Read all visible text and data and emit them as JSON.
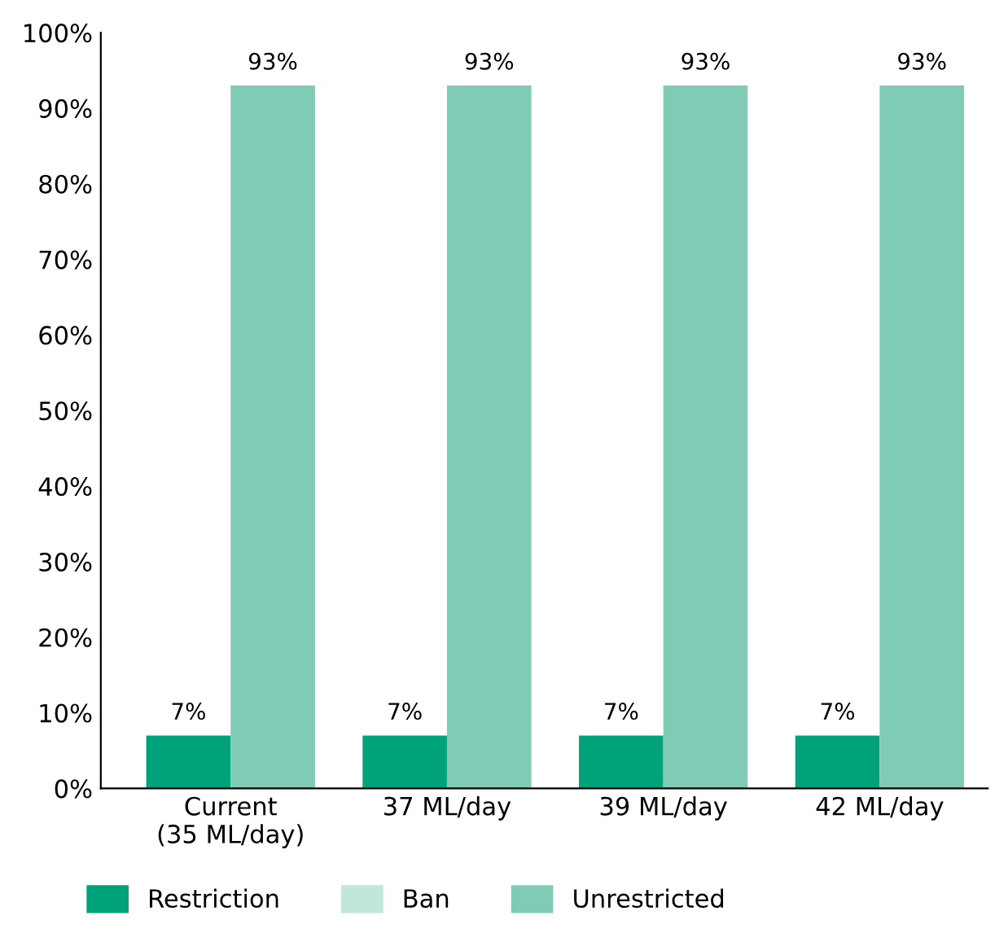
{
  "chart_data": {
    "type": "bar",
    "categories": [
      "Current\n(35 ML/day)",
      "37 ML/day",
      "39 ML/day",
      "42 ML/day"
    ],
    "series": [
      {
        "name": "Restriction",
        "color": "#00a27a",
        "values": [
          7,
          7,
          7,
          7
        ],
        "value_labels": [
          "7%",
          "7%",
          "7%",
          "7%"
        ]
      },
      {
        "name": "Ban",
        "color": "#bfe8da",
        "values": [
          null,
          null,
          null,
          null
        ]
      },
      {
        "name": "Unrestricted",
        "color": "#7fcbb5",
        "values": [
          93,
          93,
          93,
          93
        ],
        "value_labels": [
          "93%",
          "93%",
          "93%",
          "93%"
        ]
      }
    ],
    "ylim": [
      0,
      100
    ],
    "yticks": [
      {
        "value": 0,
        "label": "0%"
      },
      {
        "value": 10,
        "label": "10%"
      },
      {
        "value": 20,
        "label": "20%"
      },
      {
        "value": 30,
        "label": "30%"
      },
      {
        "value": 40,
        "label": "40%"
      },
      {
        "value": 50,
        "label": "50%"
      },
      {
        "value": 60,
        "label": "60%"
      },
      {
        "value": 70,
        "label": "70%"
      },
      {
        "value": 80,
        "label": "80%"
      },
      {
        "value": 90,
        "label": "90%"
      },
      {
        "value": 100,
        "label": "100%"
      }
    ],
    "grid": false,
    "legend": "bottom"
  }
}
